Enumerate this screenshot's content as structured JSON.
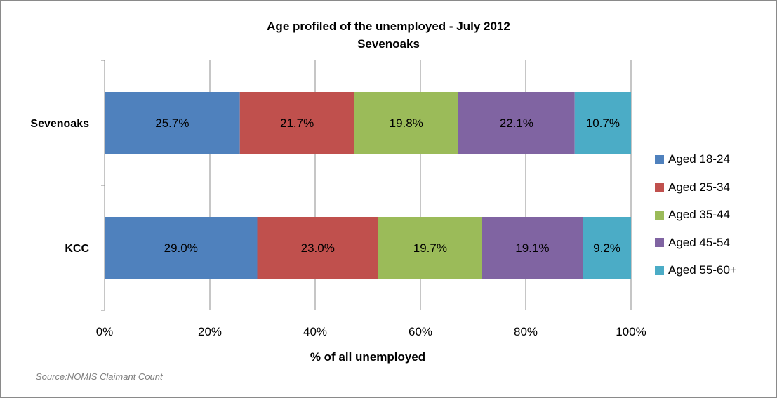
{
  "chart_data": {
    "type": "bar",
    "orientation": "horizontal",
    "stacked": "percent",
    "title": "Age profiled of the unemployed - July 2012",
    "subtitle": "Sevenoaks",
    "xlabel": "% of all unemployed",
    "ylabel": "",
    "xlim": [
      0,
      100
    ],
    "x_ticks": [
      "0%",
      "20%",
      "40%",
      "60%",
      "80%",
      "100%"
    ],
    "categories": [
      "Sevenoaks",
      "KCC"
    ],
    "series": [
      {
        "name": "Aged 18-24",
        "color": "#4f81bd",
        "values": [
          25.7,
          29.0
        ],
        "labels": [
          "25.7%",
          "29.0%"
        ]
      },
      {
        "name": "Aged 25-34",
        "color": "#c0504d",
        "values": [
          21.7,
          23.0
        ],
        "labels": [
          "21.7%",
          "23.0%"
        ]
      },
      {
        "name": "Aged 35-44",
        "color": "#9bbb59",
        "values": [
          19.8,
          19.7
        ],
        "labels": [
          "19.8%",
          "19.7%"
        ]
      },
      {
        "name": "Aged 45-54",
        "color": "#8064a2",
        "values": [
          22.1,
          19.1
        ],
        "labels": [
          "22.1%",
          "19.1%"
        ]
      },
      {
        "name": "Aged 55-60+",
        "color": "#4bacc6",
        "values": [
          10.7,
          9.2
        ],
        "labels": [
          "10.7%",
          "9.2%"
        ]
      }
    ],
    "grid": true,
    "legend_position": "right"
  },
  "footer": {
    "source": "Source:NOMIS Claimant Count"
  }
}
